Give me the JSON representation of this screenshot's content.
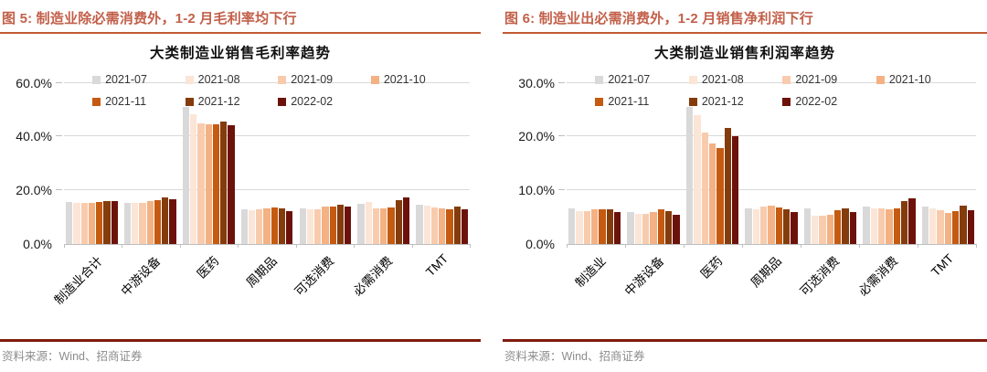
{
  "panels": [
    {
      "header": "图 5:  制造业除必需消费外，1-2 月毛利率均下行",
      "source": "资料来源：Wind、招商证券"
    },
    {
      "header": "图 6:  制造业出必需消费外，1-2 月销售净利润下行",
      "source": "资料来源：Wind、招商证券"
    }
  ],
  "colors": {
    "caption_text": "#c2604a",
    "caption_rule": "#c05a31",
    "source_rule": "#7f1b10",
    "source_text": "#8c8c8c",
    "gridline": "#d9d9d9",
    "axis_line": "#bfbfbf"
  },
  "chart_data": [
    {
      "type": "bar",
      "title": "大类制造业销售毛利率趋势",
      "categories": [
        "制造业合计",
        "中游设备",
        "医药",
        "周期品",
        "可选消费",
        "必需消费",
        "TMT"
      ],
      "series": [
        {
          "name": "2021-07",
          "color": "#d9d9d9",
          "values": [
            15.5,
            15.4,
            51.0,
            12.8,
            13.4,
            15.0,
            14.8
          ]
        },
        {
          "name": "2021-08",
          "color": "#fbe5d6",
          "values": [
            15.3,
            15.2,
            48.5,
            12.5,
            12.9,
            15.6,
            14.4
          ]
        },
        {
          "name": "2021-09",
          "color": "#f8cbad",
          "values": [
            15.3,
            15.4,
            45.0,
            13.0,
            13.1,
            13.4,
            13.5
          ]
        },
        {
          "name": "2021-10",
          "color": "#f4b183",
          "values": [
            15.4,
            15.9,
            44.5,
            13.3,
            13.8,
            13.4,
            13.4
          ]
        },
        {
          "name": "2021-11",
          "color": "#c55a11",
          "values": [
            15.8,
            16.4,
            44.7,
            13.5,
            14.1,
            13.5,
            13.0
          ]
        },
        {
          "name": "2021-12",
          "color": "#843c0c",
          "values": [
            16.0,
            17.3,
            45.6,
            13.4,
            14.5,
            16.3,
            13.8
          ]
        },
        {
          "name": "2022-02",
          "color": "#6d120b",
          "values": [
            15.9,
            16.7,
            44.3,
            12.4,
            14.0,
            17.4,
            13.1
          ]
        }
      ],
      "yticks": [
        "0.0%",
        "20.0%",
        "40.0%",
        "60.0%"
      ],
      "ytick_values": [
        0,
        20,
        40,
        60
      ],
      "ylim": [
        0,
        60
      ],
      "display_max": 65,
      "grid": "horizontal",
      "legend_position": "top"
    },
    {
      "type": "bar",
      "title": "大类制造业销售利润率趋势",
      "categories": [
        "制造业",
        "中游设备",
        "医药",
        "周期品",
        "可选消费",
        "必需消费",
        "TMT"
      ],
      "series": [
        {
          "name": "2021-07",
          "color": "#d9d9d9",
          "values": [
            6.7,
            6.0,
            25.5,
            6.6,
            6.6,
            7.0,
            7.0
          ]
        },
        {
          "name": "2021-08",
          "color": "#fbe5d6",
          "values": [
            6.2,
            5.6,
            24.0,
            6.4,
            5.3,
            6.7,
            6.6
          ]
        },
        {
          "name": "2021-09",
          "color": "#f8cbad",
          "values": [
            6.2,
            5.6,
            20.8,
            6.9,
            5.3,
            6.7,
            6.3
          ]
        },
        {
          "name": "2021-10",
          "color": "#f4b183",
          "values": [
            6.4,
            5.9,
            18.8,
            7.1,
            5.5,
            6.4,
            5.8
          ]
        },
        {
          "name": "2021-11",
          "color": "#c55a11",
          "values": [
            6.5,
            6.4,
            17.8,
            6.8,
            6.3,
            6.7,
            6.2
          ]
        },
        {
          "name": "2021-12",
          "color": "#843c0c",
          "values": [
            6.4,
            6.2,
            21.6,
            6.5,
            6.6,
            8.0,
            7.2
          ]
        },
        {
          "name": "2022-02",
          "color": "#6d120b",
          "values": [
            5.9,
            5.5,
            20.0,
            5.9,
            6.0,
            8.5,
            6.3
          ]
        }
      ],
      "yticks": [
        "0.0%",
        "10.0%",
        "20.0%",
        "30.0%"
      ],
      "ytick_values": [
        0,
        10,
        20,
        30
      ],
      "ylim": [
        0,
        30
      ],
      "display_max": 32.5,
      "grid": "horizontal",
      "legend_position": "top"
    }
  ]
}
